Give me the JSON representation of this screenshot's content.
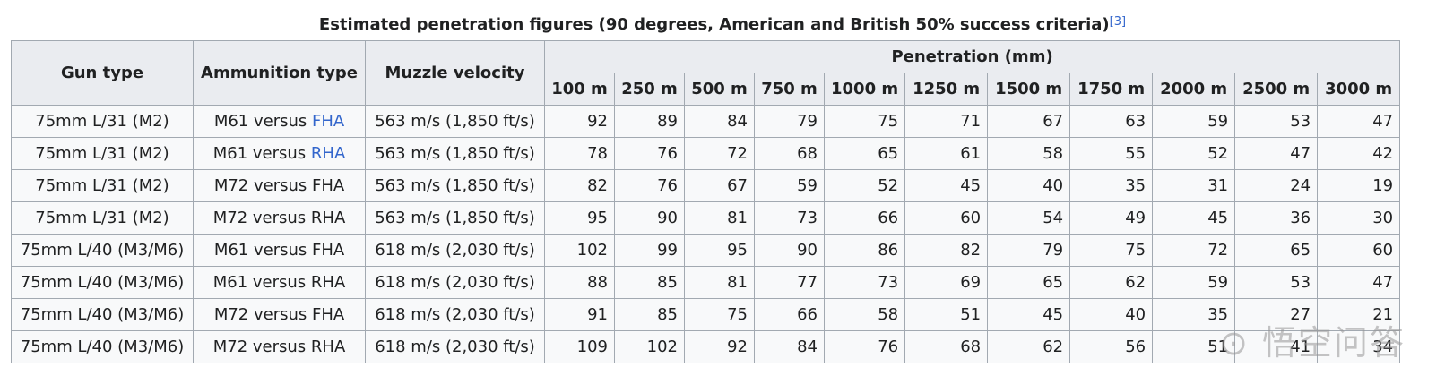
{
  "caption": {
    "text": "Estimated penetration figures (90 degrees, American and British 50% success criteria)",
    "ref": "[3]"
  },
  "headers": {
    "gun_type": "Gun type",
    "ammo_type": "Ammunition type",
    "muzzle_velocity": "Muzzle velocity",
    "penetration": "Penetration (mm)",
    "ranges": [
      "100 m",
      "250 m",
      "500 m",
      "750 m",
      "1000 m",
      "1250 m",
      "1500 m",
      "1750 m",
      "2000 m",
      "2500 m",
      "3000 m"
    ]
  },
  "rows": [
    {
      "gun": "75mm L/31 (M2)",
      "ammo_prefix": "M61 versus ",
      "ammo_armor": "FHA",
      "armor_is_link": true,
      "velocity": "563 m/s (1,850 ft/s)",
      "values": [
        "92",
        "89",
        "84",
        "79",
        "75",
        "71",
        "67",
        "63",
        "59",
        "53",
        "47"
      ]
    },
    {
      "gun": "75mm L/31 (M2)",
      "ammo_prefix": "M61 versus ",
      "ammo_armor": "RHA",
      "armor_is_link": true,
      "velocity": "563 m/s (1,850 ft/s)",
      "values": [
        "78",
        "76",
        "72",
        "68",
        "65",
        "61",
        "58",
        "55",
        "52",
        "47",
        "42"
      ]
    },
    {
      "gun": "75mm L/31 (M2)",
      "ammo_prefix": "M72 versus ",
      "ammo_armor": "FHA",
      "armor_is_link": false,
      "velocity": "563 m/s (1,850 ft/s)",
      "values": [
        "82",
        "76",
        "67",
        "59",
        "52",
        "45",
        "40",
        "35",
        "31",
        "24",
        "19"
      ]
    },
    {
      "gun": "75mm L/31 (M2)",
      "ammo_prefix": "M72 versus ",
      "ammo_armor": "RHA",
      "armor_is_link": false,
      "velocity": "563 m/s (1,850 ft/s)",
      "values": [
        "95",
        "90",
        "81",
        "73",
        "66",
        "60",
        "54",
        "49",
        "45",
        "36",
        "30"
      ]
    },
    {
      "gun": "75mm L/40 (M3/M6)",
      "ammo_prefix": "M61 versus ",
      "ammo_armor": "FHA",
      "armor_is_link": false,
      "velocity": "618 m/s (2,030 ft/s)",
      "values": [
        "102",
        "99",
        "95",
        "90",
        "86",
        "82",
        "79",
        "75",
        "72",
        "65",
        "60"
      ]
    },
    {
      "gun": "75mm L/40 (M3/M6)",
      "ammo_prefix": "M61 versus ",
      "ammo_armor": "RHA",
      "armor_is_link": false,
      "velocity": "618 m/s (2,030 ft/s)",
      "values": [
        "88",
        "85",
        "81",
        "77",
        "73",
        "69",
        "65",
        "62",
        "59",
        "53",
        "47"
      ]
    },
    {
      "gun": "75mm L/40 (M3/M6)",
      "ammo_prefix": "M72 versus ",
      "ammo_armor": "FHA",
      "armor_is_link": false,
      "velocity": "618 m/s (2,030 ft/s)",
      "values": [
        "91",
        "85",
        "75",
        "66",
        "58",
        "51",
        "45",
        "40",
        "35",
        "27",
        "21"
      ]
    },
    {
      "gun": "75mm L/40 (M3/M6)",
      "ammo_prefix": "M72 versus ",
      "ammo_armor": "RHA",
      "armor_is_link": false,
      "velocity": "618 m/s (2,030 ft/s)",
      "values": [
        "109",
        "102",
        "92",
        "84",
        "76",
        "68",
        "62",
        "56",
        "51",
        "41",
        "34"
      ]
    }
  ],
  "watermark": "悟空问答",
  "colors": {
    "link": "#3366cc",
    "header_bg": "#eaecf0",
    "cell_bg": "#f8f9fa",
    "border": "#a2a9b1"
  }
}
